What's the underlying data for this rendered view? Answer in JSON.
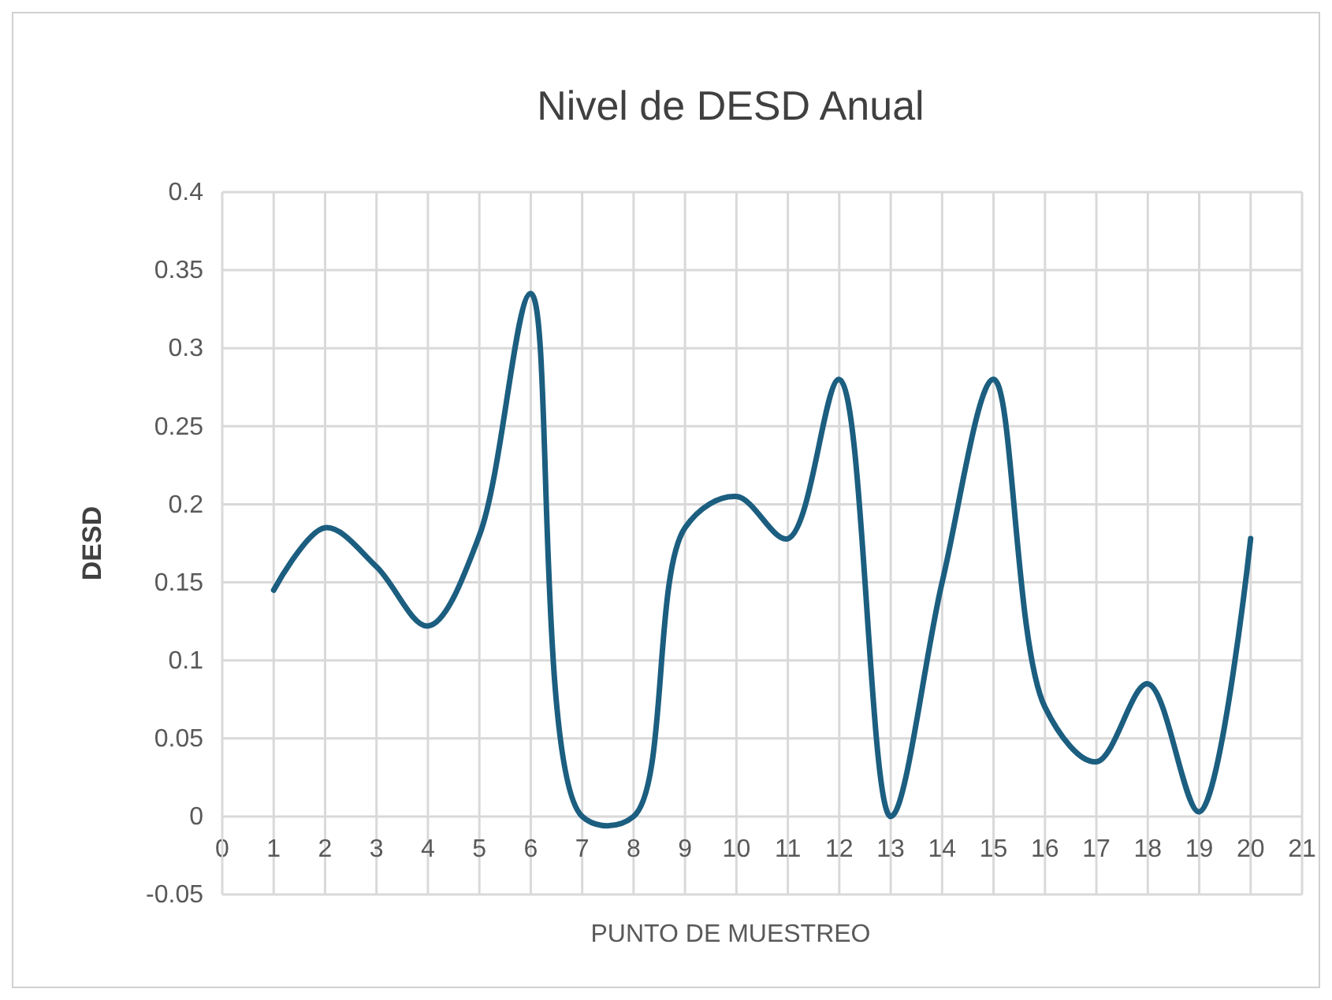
{
  "chart_data": {
    "type": "line",
    "title": "Nivel de DESD Anual",
    "xlabel": "PUNTO DE MUESTREO",
    "ylabel": "DESD",
    "x": [
      1,
      2,
      3,
      4,
      5,
      6,
      7,
      8,
      9,
      10,
      11,
      12,
      13,
      14,
      15,
      16,
      17,
      18,
      19,
      20
    ],
    "series": [
      {
        "color": "#1b5e80",
        "values": [
          0.145,
          0.185,
          0.16,
          0.122,
          0.18,
          0.335,
          0.0,
          0.0,
          0.185,
          0.205,
          0.178,
          0.28,
          0.0,
          0.15,
          0.28,
          0.07,
          0.035,
          0.085,
          0.003,
          0.178
        ]
      }
    ],
    "xlim": [
      0,
      21
    ],
    "xticks": [
      0,
      1,
      2,
      3,
      4,
      5,
      6,
      7,
      8,
      9,
      10,
      11,
      12,
      13,
      14,
      15,
      16,
      17,
      18,
      19,
      20,
      21
    ],
    "ylim": [
      -0.05,
      0.4
    ],
    "yticks": [
      -0.05,
      0,
      0.05,
      0.1,
      0.15,
      0.2,
      0.25,
      0.3,
      0.35,
      0.4
    ],
    "grid": true,
    "marker": "none",
    "line_style": "solid"
  }
}
